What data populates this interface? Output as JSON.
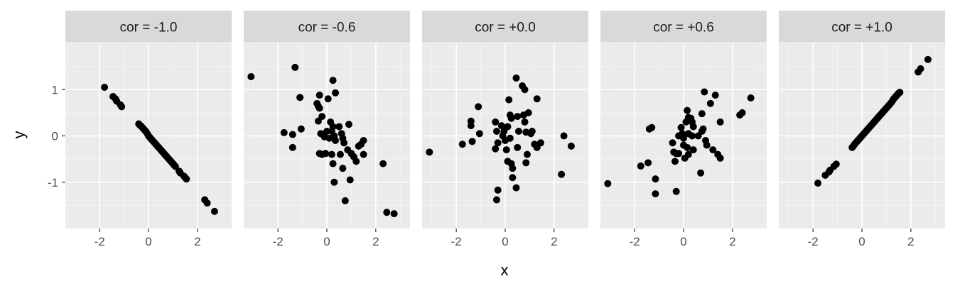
{
  "chart_data": {
    "type": "scatter",
    "xlabel": "x",
    "ylabel": "y",
    "xlim": [
      -3.4,
      3.4
    ],
    "ylim": [
      -2.0,
      2.0
    ],
    "xticks": [
      -2,
      0,
      2
    ],
    "xtick_labels": [
      "-2",
      "0",
      "2"
    ],
    "yticks": [
      -1,
      0,
      1
    ],
    "ytick_labels": [
      "-1",
      "0",
      "1"
    ],
    "grid": true,
    "legend": "none",
    "colors": {
      "panel_bg": "#ebebeb",
      "strip_bg": "#d9d9d9",
      "grid_major": "#ffffff",
      "grid_minor": "#f5f5f5",
      "point": "#000000"
    },
    "facets": [
      {
        "label": "cor = -1.0",
        "points": [
          [
            -1.8,
            1.05
          ],
          [
            -1.45,
            0.85
          ],
          [
            -1.35,
            0.8
          ],
          [
            -1.3,
            0.75
          ],
          [
            -1.15,
            0.67
          ],
          [
            -1.1,
            0.63
          ],
          [
            -0.4,
            0.26
          ],
          [
            -0.35,
            0.23
          ],
          [
            -0.3,
            0.21
          ],
          [
            -0.25,
            0.18
          ],
          [
            -0.2,
            0.15
          ],
          [
            -0.15,
            0.12
          ],
          [
            -0.1,
            0.09
          ],
          [
            -0.05,
            0.05
          ],
          [
            0.0,
            0.0
          ],
          [
            0.05,
            -0.03
          ],
          [
            0.1,
            -0.06
          ],
          [
            0.15,
            -0.09
          ],
          [
            0.2,
            -0.12
          ],
          [
            0.25,
            -0.15
          ],
          [
            0.3,
            -0.18
          ],
          [
            0.35,
            -0.21
          ],
          [
            0.4,
            -0.24
          ],
          [
            0.45,
            -0.27
          ],
          [
            0.5,
            -0.3
          ],
          [
            0.55,
            -0.33
          ],
          [
            0.6,
            -0.36
          ],
          [
            0.65,
            -0.39
          ],
          [
            0.7,
            -0.42
          ],
          [
            0.75,
            -0.45
          ],
          [
            0.8,
            -0.48
          ],
          [
            0.85,
            -0.51
          ],
          [
            0.9,
            -0.54
          ],
          [
            0.95,
            -0.57
          ],
          [
            1.0,
            -0.6
          ],
          [
            1.05,
            -0.63
          ],
          [
            1.1,
            -0.66
          ],
          [
            1.25,
            -0.76
          ],
          [
            1.3,
            -0.8
          ],
          [
            1.45,
            -0.87
          ],
          [
            1.5,
            -0.9
          ],
          [
            1.55,
            -0.93
          ],
          [
            2.3,
            -1.38
          ],
          [
            2.4,
            -1.45
          ],
          [
            2.7,
            -1.63
          ]
        ]
      },
      {
        "label": "cor = -0.6",
        "points": [
          [
            -3.1,
            1.28
          ],
          [
            -1.3,
            1.48
          ],
          [
            -1.1,
            0.83
          ],
          [
            -1.05,
            0.15
          ],
          [
            -1.75,
            0.07
          ],
          [
            -1.4,
            0.03
          ],
          [
            -1.4,
            -0.25
          ],
          [
            -0.4,
            0.7
          ],
          [
            -0.35,
            0.64
          ],
          [
            -0.3,
            0.6
          ],
          [
            -0.35,
            0.32
          ],
          [
            -0.3,
            0.88
          ],
          [
            -0.2,
            0.42
          ],
          [
            -0.25,
            0.05
          ],
          [
            -0.1,
            -0.02
          ],
          [
            -0.3,
            -0.38
          ],
          [
            -0.2,
            -0.4
          ],
          [
            -0.05,
            -0.38
          ],
          [
            0.05,
            0.8
          ],
          [
            0.15,
            0.3
          ],
          [
            0.25,
            0.2
          ],
          [
            0.2,
            0.1
          ],
          [
            0.0,
            0.1
          ],
          [
            0.1,
            -0.05
          ],
          [
            0.3,
            0.0
          ],
          [
            0.35,
            -0.1
          ],
          [
            0.2,
            -0.4
          ],
          [
            0.25,
            -0.6
          ],
          [
            0.3,
            -1.0
          ],
          [
            0.25,
            1.2
          ],
          [
            0.35,
            0.93
          ],
          [
            0.5,
            0.2
          ],
          [
            0.6,
            0.05
          ],
          [
            0.65,
            -0.05
          ],
          [
            0.7,
            -0.15
          ],
          [
            0.55,
            -0.4
          ],
          [
            0.65,
            -0.7
          ],
          [
            0.75,
            -1.4
          ],
          [
            0.9,
            0.25
          ],
          [
            0.85,
            -0.3
          ],
          [
            1.0,
            -0.38
          ],
          [
            1.1,
            -0.45
          ],
          [
            1.2,
            -0.55
          ],
          [
            1.3,
            -0.22
          ],
          [
            1.4,
            -0.18
          ],
          [
            1.5,
            -0.1
          ],
          [
            1.5,
            -0.4
          ],
          [
            0.95,
            -0.95
          ],
          [
            2.3,
            -0.6
          ],
          [
            2.45,
            -1.65
          ],
          [
            2.75,
            -1.68
          ]
        ]
      },
      {
        "label": "cor = +0.0",
        "points": [
          [
            -3.1,
            -0.35
          ],
          [
            -1.75,
            -0.18
          ],
          [
            -1.4,
            0.32
          ],
          [
            -1.4,
            0.22
          ],
          [
            -1.35,
            -0.12
          ],
          [
            -1.1,
            0.63
          ],
          [
            -1.05,
            0.05
          ],
          [
            -0.4,
            0.3
          ],
          [
            -0.35,
            0.1
          ],
          [
            -0.3,
            -0.15
          ],
          [
            -0.4,
            -0.28
          ],
          [
            -0.3,
            -1.17
          ],
          [
            -0.35,
            -1.38
          ],
          [
            -0.15,
            0.22
          ],
          [
            -0.1,
            0.0
          ],
          [
            0.0,
            -0.1
          ],
          [
            0.05,
            -0.3
          ],
          [
            0.1,
            -0.55
          ],
          [
            -0.05,
            0.1
          ],
          [
            0.1,
            0.2
          ],
          [
            0.15,
            0.78
          ],
          [
            0.2,
            0.45
          ],
          [
            0.25,
            0.38
          ],
          [
            0.2,
            -0.05
          ],
          [
            0.25,
            -0.6
          ],
          [
            0.3,
            -0.7
          ],
          [
            0.3,
            -0.9
          ],
          [
            0.45,
            1.25
          ],
          [
            0.5,
            0.42
          ],
          [
            0.55,
            0.1
          ],
          [
            0.5,
            -0.25
          ],
          [
            0.45,
            -1.12
          ],
          [
            0.7,
            1.08
          ],
          [
            0.8,
            1.0
          ],
          [
            0.75,
            0.45
          ],
          [
            0.8,
            0.3
          ],
          [
            0.85,
            0.08
          ],
          [
            0.9,
            -0.4
          ],
          [
            0.85,
            -0.58
          ],
          [
            0.95,
            0.5
          ],
          [
            1.05,
            0.05
          ],
          [
            1.1,
            0.1
          ],
          [
            1.2,
            -0.18
          ],
          [
            1.3,
            -0.25
          ],
          [
            1.3,
            0.8
          ],
          [
            1.45,
            -0.15
          ],
          [
            2.3,
            -0.83
          ],
          [
            2.4,
            0.0
          ],
          [
            2.7,
            -0.22
          ]
        ]
      },
      {
        "label": "cor = +0.6",
        "points": [
          [
            -3.1,
            -1.03
          ],
          [
            -1.75,
            -0.65
          ],
          [
            -1.45,
            -0.58
          ],
          [
            -1.4,
            0.15
          ],
          [
            -1.3,
            0.18
          ],
          [
            -1.15,
            -0.93
          ],
          [
            -1.15,
            -1.25
          ],
          [
            -0.45,
            -0.15
          ],
          [
            -0.4,
            -0.35
          ],
          [
            -0.35,
            -0.55
          ],
          [
            -0.3,
            -0.38
          ],
          [
            -0.3,
            -1.2
          ],
          [
            -0.2,
            0.0
          ],
          [
            -0.2,
            -0.38
          ],
          [
            -0.1,
            0.18
          ],
          [
            -0.05,
            0.05
          ],
          [
            0.0,
            -0.2
          ],
          [
            0.05,
            -0.48
          ],
          [
            0.0,
            -0.05
          ],
          [
            0.1,
            0.3
          ],
          [
            0.15,
            0.55
          ],
          [
            0.2,
            0.4
          ],
          [
            0.2,
            0.05
          ],
          [
            0.15,
            -0.25
          ],
          [
            0.2,
            -0.4
          ],
          [
            0.3,
            0.38
          ],
          [
            0.35,
            0.3
          ],
          [
            0.35,
            0.0
          ],
          [
            0.4,
            -0.3
          ],
          [
            0.4,
            0.2
          ],
          [
            0.6,
            0.0
          ],
          [
            0.7,
            -0.8
          ],
          [
            0.75,
            0.1
          ],
          [
            0.8,
            0.15
          ],
          [
            0.75,
            0.48
          ],
          [
            0.85,
            0.95
          ],
          [
            0.9,
            -0.1
          ],
          [
            0.95,
            -0.2
          ],
          [
            1.1,
            0.7
          ],
          [
            1.2,
            -0.3
          ],
          [
            1.3,
            0.88
          ],
          [
            1.4,
            -0.4
          ],
          [
            1.5,
            -0.48
          ],
          [
            1.5,
            0.3
          ],
          [
            2.3,
            0.45
          ],
          [
            2.4,
            0.5
          ],
          [
            2.75,
            0.82
          ]
        ]
      },
      {
        "label": "cor = +1.0",
        "points": [
          [
            -1.8,
            -1.02
          ],
          [
            -1.5,
            -0.85
          ],
          [
            -1.35,
            -0.78
          ],
          [
            -1.3,
            -0.74
          ],
          [
            -1.15,
            -0.66
          ],
          [
            -1.05,
            -0.61
          ],
          [
            -0.4,
            -0.25
          ],
          [
            -0.35,
            -0.22
          ],
          [
            -0.3,
            -0.18
          ],
          [
            -0.25,
            -0.15
          ],
          [
            -0.2,
            -0.12
          ],
          [
            -0.15,
            -0.09
          ],
          [
            -0.1,
            -0.06
          ],
          [
            -0.05,
            -0.03
          ],
          [
            0.0,
            0.0
          ],
          [
            0.05,
            0.03
          ],
          [
            0.1,
            0.06
          ],
          [
            0.15,
            0.09
          ],
          [
            0.2,
            0.12
          ],
          [
            0.25,
            0.15
          ],
          [
            0.3,
            0.18
          ],
          [
            0.35,
            0.21
          ],
          [
            0.4,
            0.24
          ],
          [
            0.45,
            0.27
          ],
          [
            0.5,
            0.3
          ],
          [
            0.55,
            0.33
          ],
          [
            0.6,
            0.36
          ],
          [
            0.65,
            0.39
          ],
          [
            0.7,
            0.42
          ],
          [
            0.75,
            0.45
          ],
          [
            0.8,
            0.48
          ],
          [
            0.85,
            0.51
          ],
          [
            0.9,
            0.54
          ],
          [
            0.95,
            0.57
          ],
          [
            1.0,
            0.6
          ],
          [
            1.05,
            0.63
          ],
          [
            1.1,
            0.66
          ],
          [
            1.15,
            0.69
          ],
          [
            1.2,
            0.72
          ],
          [
            1.25,
            0.76
          ],
          [
            1.3,
            0.8
          ],
          [
            1.35,
            0.83
          ],
          [
            1.4,
            0.86
          ],
          [
            1.45,
            0.89
          ],
          [
            1.5,
            0.92
          ],
          [
            1.55,
            0.94
          ],
          [
            2.3,
            1.38
          ],
          [
            2.4,
            1.45
          ],
          [
            2.7,
            1.65
          ]
        ]
      }
    ]
  }
}
